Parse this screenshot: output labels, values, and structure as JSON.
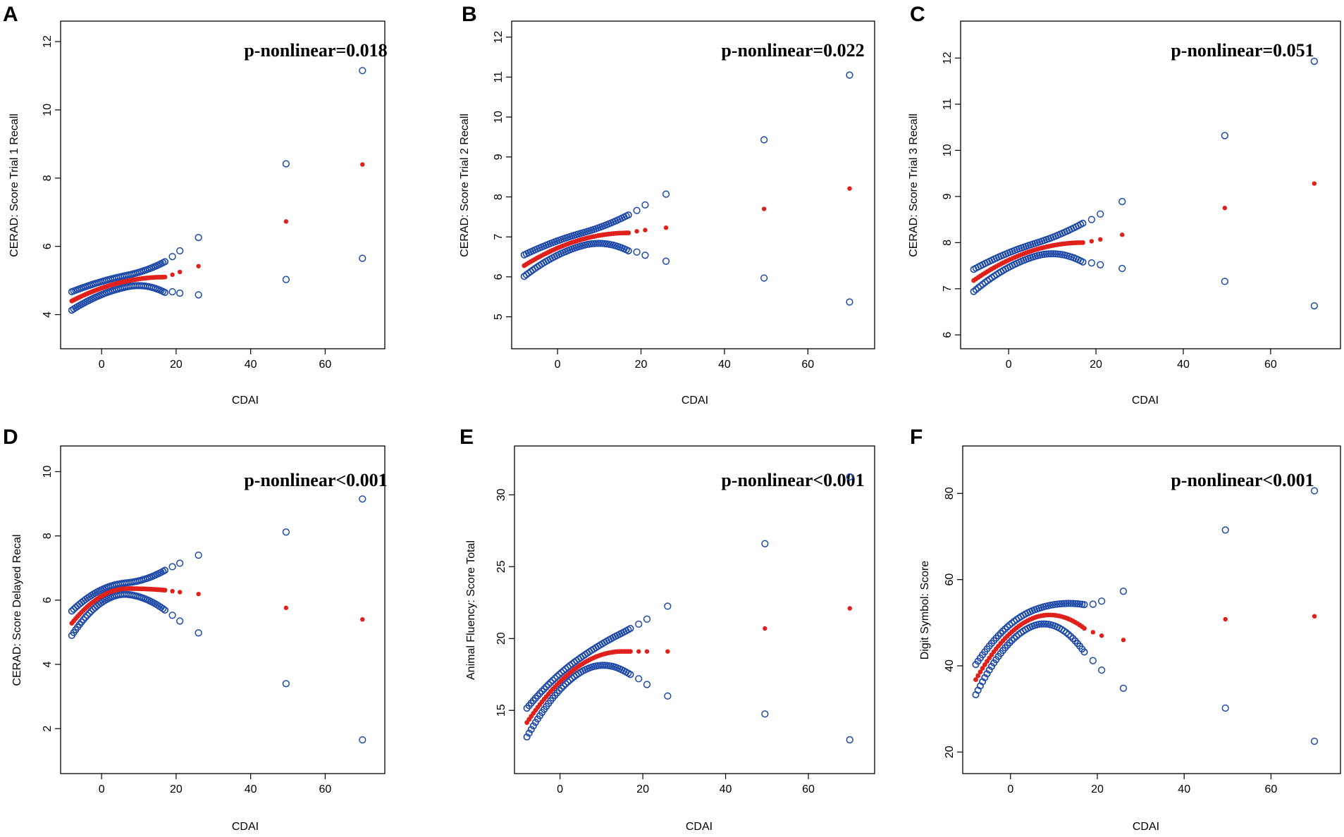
{
  "figure": {
    "panel_count": 6,
    "colors": {
      "ci_points": "#1f4aa8",
      "fit_points": "#e0201b",
      "axes": "#000000"
    }
  },
  "chart_data": [
    {
      "type": "scatter",
      "panel": "A",
      "title": "",
      "xlabel": "CDAI",
      "ylabel": "CERAD: Score Trial 1 Recall",
      "annotation": "p-nonlinear=0.018",
      "xlim": [
        -11,
        76
      ],
      "ylim": [
        3.0,
        12.6
      ],
      "xticks": [
        0,
        20,
        40,
        60
      ],
      "yticks": [
        4,
        6,
        8,
        10,
        12
      ],
      "curve": {
        "x0": -8,
        "y0": 4.4,
        "peak_x": 17,
        "peak": 5.1,
        "end_x": 17,
        "end_y": 5.1,
        "w_start": 0.27,
        "w_min": 0.17,
        "w_min_x": 7,
        "w_end": 0.45
      },
      "outliers": [
        {
          "x": 19,
          "y": 5.17,
          "lo": 4.67,
          "hi": 5.7
        },
        {
          "x": 21,
          "y": 5.25,
          "lo": 4.63,
          "hi": 5.87
        },
        {
          "x": 26,
          "y": 5.42,
          "lo": 4.58,
          "hi": 6.26
        },
        {
          "x": 49.5,
          "y": 6.73,
          "lo": 5.03,
          "hi": 8.42
        },
        {
          "x": 70,
          "y": 8.4,
          "lo": 5.65,
          "hi": 11.15
        }
      ]
    },
    {
      "type": "scatter",
      "panel": "B",
      "title": "",
      "xlabel": "CDAI",
      "ylabel": "CERAD: Score Trial 2 Recall",
      "annotation": "p-nonlinear=0.022",
      "xlim": [
        -11,
        76
      ],
      "ylim": [
        4.2,
        12.4
      ],
      "xticks": [
        0,
        20,
        40,
        60
      ],
      "yticks": [
        5,
        6,
        7,
        8,
        9,
        10,
        11,
        12
      ],
      "curve": {
        "x0": -8,
        "y0": 6.28,
        "peak_x": 17,
        "peak": 7.1,
        "end_x": 17,
        "end_y": 7.1,
        "w_start": 0.27,
        "w_min": 0.16,
        "w_min_x": 6,
        "w_end": 0.45
      },
      "outliers": [
        {
          "x": 19,
          "y": 7.14,
          "lo": 6.62,
          "hi": 7.66
        },
        {
          "x": 21,
          "y": 7.17,
          "lo": 6.54,
          "hi": 7.8
        },
        {
          "x": 26,
          "y": 7.23,
          "lo": 6.39,
          "hi": 8.07
        },
        {
          "x": 49.5,
          "y": 7.7,
          "lo": 5.97,
          "hi": 9.43
        },
        {
          "x": 70,
          "y": 8.21,
          "lo": 5.37,
          "hi": 11.05
        }
      ]
    },
    {
      "type": "scatter",
      "panel": "C",
      "title": "",
      "xlabel": "CDAI",
      "ylabel": "CERAD: Score Trial 3 Recall",
      "annotation": "p-nonlinear=0.051",
      "xlim": [
        -11,
        76
      ],
      "ylim": [
        5.7,
        12.8
      ],
      "xticks": [
        0,
        20,
        40,
        60
      ],
      "yticks": [
        6,
        7,
        8,
        9,
        10,
        11,
        12
      ],
      "curve": {
        "x0": -8,
        "y0": 7.18,
        "peak_x": 17,
        "peak": 8.0,
        "end_x": 17,
        "end_y": 8.0,
        "w_start": 0.24,
        "w_min": 0.14,
        "w_min_x": 6,
        "w_end": 0.42
      },
      "outliers": [
        {
          "x": 19,
          "y": 8.03,
          "lo": 7.56,
          "hi": 8.5
        },
        {
          "x": 21,
          "y": 8.07,
          "lo": 7.52,
          "hi": 8.62
        },
        {
          "x": 26,
          "y": 8.17,
          "lo": 7.44,
          "hi": 8.89
        },
        {
          "x": 49.5,
          "y": 8.75,
          "lo": 7.16,
          "hi": 10.32
        },
        {
          "x": 70,
          "y": 9.28,
          "lo": 6.63,
          "hi": 11.93
        }
      ]
    },
    {
      "type": "scatter",
      "panel": "D",
      "title": "",
      "xlabel": "CDAI",
      "ylabel": "CERAD: Score Delayed Recal",
      "annotation": "p-nonlinear<0.001",
      "xlim": [
        -11,
        76
      ],
      "ylim": [
        0.6,
        10.8
      ],
      "xticks": [
        0,
        20,
        40,
        60
      ],
      "yticks": [
        2,
        4,
        6,
        8,
        10
      ],
      "curve": {
        "x0": -8,
        "y0": 5.28,
        "peak_x": 7,
        "peak": 6.36,
        "end_x": 17,
        "end_y": 6.31,
        "w_start": 0.38,
        "w_min": 0.17,
        "w_min_x": 5,
        "w_end": 0.62
      },
      "outliers": [
        {
          "x": 19,
          "y": 6.28,
          "lo": 5.53,
          "hi": 7.04
        },
        {
          "x": 21,
          "y": 6.25,
          "lo": 5.35,
          "hi": 7.15
        },
        {
          "x": 26,
          "y": 6.19,
          "lo": 4.98,
          "hi": 7.4
        },
        {
          "x": 49.5,
          "y": 5.76,
          "lo": 3.4,
          "hi": 8.12
        },
        {
          "x": 70,
          "y": 5.4,
          "lo": 1.65,
          "hi": 9.15
        }
      ]
    },
    {
      "type": "scatter",
      "panel": "E",
      "title": "",
      "xlabel": "CDAI",
      "ylabel": "Animal Fluency: Score Total",
      "annotation": "p-nonlinear<0.001",
      "xlim": [
        -11,
        76
      ],
      "ylim": [
        10.6,
        33.4
      ],
      "xticks": [
        0,
        20,
        40,
        60
      ],
      "yticks": [
        15,
        20,
        25,
        30
      ],
      "curve": {
        "x0": -8,
        "y0": 14.15,
        "peak_x": 15,
        "peak": 19.1,
        "end_x": 17,
        "end_y": 19.1,
        "w_start": 1.0,
        "w_min": 0.5,
        "w_min_x": 4,
        "w_end": 1.6
      },
      "outliers": [
        {
          "x": 19,
          "y": 19.1,
          "lo": 17.2,
          "hi": 21.0
        },
        {
          "x": 21,
          "y": 19.1,
          "lo": 16.8,
          "hi": 21.35
        },
        {
          "x": 26,
          "y": 19.1,
          "lo": 16.0,
          "hi": 22.25
        },
        {
          "x": 49.5,
          "y": 20.7,
          "lo": 14.75,
          "hi": 26.6
        },
        {
          "x": 70,
          "y": 22.1,
          "lo": 12.95,
          "hi": 31.25
        }
      ]
    },
    {
      "type": "scatter",
      "panel": "F",
      "title": "",
      "xlabel": "CDAI",
      "ylabel": "Digit Symbol: Score",
      "annotation": "p-nonlinear<0.001",
      "xlim": [
        -11,
        76
      ],
      "ylim": [
        15,
        91
      ],
      "xticks": [
        0,
        20,
        40,
        60
      ],
      "yticks": [
        20,
        40,
        60,
        80
      ],
      "curve": {
        "x0": -8,
        "y0": 36.8,
        "peak_x": 9,
        "peak": 51.8,
        "end_x": 17,
        "end_y": 48.7,
        "w_start": 3.5,
        "w_min": 1.8,
        "w_min_x": 5,
        "w_end": 5.5
      },
      "outliers": [
        {
          "x": 19,
          "y": 47.8,
          "lo": 41.2,
          "hi": 54.3
        },
        {
          "x": 21,
          "y": 47.0,
          "lo": 39.0,
          "hi": 55.0
        },
        {
          "x": 26,
          "y": 46.0,
          "lo": 34.8,
          "hi": 57.3
        },
        {
          "x": 49.5,
          "y": 50.8,
          "lo": 30.2,
          "hi": 71.5
        },
        {
          "x": 70,
          "y": 51.5,
          "lo": 22.5,
          "hi": 80.6
        }
      ]
    }
  ]
}
